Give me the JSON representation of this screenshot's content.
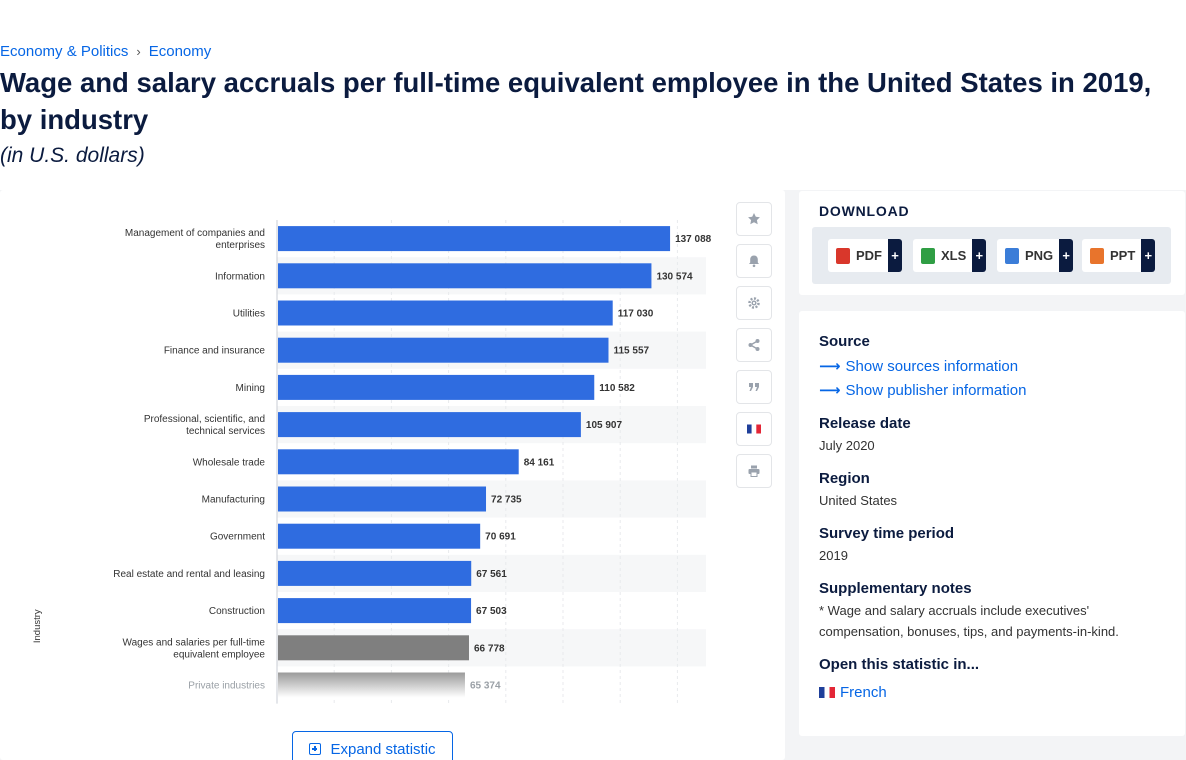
{
  "breadcrumb": {
    "item1": "Economy & Politics",
    "separator": "›",
    "item2": "Economy"
  },
  "header": {
    "title": "Wage and salary accruals per full-time equivalent employee in the United States in 2019, by industry",
    "subtitle": "(in U.S. dollars)"
  },
  "chart_data": {
    "type": "bar",
    "orientation": "horizontal",
    "title": "",
    "xlabel": "",
    "ylabel": "Industry",
    "xlim": [
      0,
      150000
    ],
    "grid": true,
    "categories": [
      "Management of companies and enterprises",
      "Information",
      "Utilities",
      "Finance and insurance",
      "Mining",
      "Professional, scientific, and technical services",
      "Wholesale trade",
      "Manufacturing",
      "Government",
      "Real estate and rental and leasing",
      "Construction",
      "Wages and salaries per full-time equivalent employee",
      "Private industries"
    ],
    "values": [
      137088,
      130574,
      117030,
      115557,
      110582,
      105907,
      84161,
      72735,
      70691,
      67561,
      67503,
      66778,
      65374
    ],
    "value_labels": [
      "137 088",
      "130 574",
      "117 030",
      "115 557",
      "110 582",
      "105 907",
      "84 161",
      "72 735",
      "70 691",
      "67 561",
      "67 503",
      "66 778",
      "65 374"
    ],
    "colors": {
      "default": "#2f6ce0",
      "highlight": "#7f7f7f",
      "highlight_index": 11,
      "faded_index": 12
    }
  },
  "tools": {
    "items": [
      "star-icon",
      "bell-icon",
      "gear-icon",
      "share-icon",
      "quote-icon",
      "france-flag-icon",
      "print-icon"
    ]
  },
  "expand": {
    "label": "Expand statistic"
  },
  "download": {
    "title": "DOWNLOAD",
    "buttons": [
      {
        "label": "PDF",
        "plus": "+",
        "color": "#d9372b"
      },
      {
        "label": "XLS",
        "plus": "+",
        "color": "#2f9e44"
      },
      {
        "label": "PNG",
        "plus": "+",
        "color": "#3b7dd8"
      },
      {
        "label": "PPT",
        "plus": "+",
        "color": "#e8742c"
      }
    ]
  },
  "info": {
    "source_label": "Source",
    "show_sources": "Show sources information",
    "show_publisher": "Show publisher information",
    "release_label": "Release date",
    "release_value": "July 2020",
    "region_label": "Region",
    "region_value": "United States",
    "period_label": "Survey time period",
    "period_value": "2019",
    "notes_label": "Supplementary notes",
    "notes_value": "* Wage and salary accruals include executives' compensation, bonuses, tips, and payments-in-kind.",
    "open_label": "Open this statistic in...",
    "open_value": "French"
  }
}
